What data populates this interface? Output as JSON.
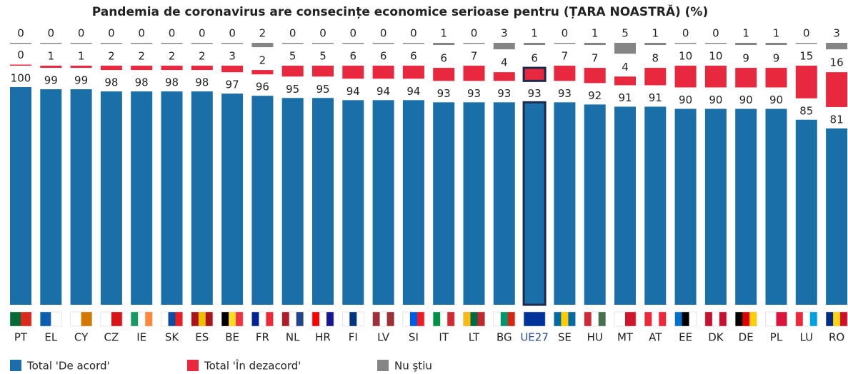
{
  "chart_data": {
    "type": "bar",
    "title": "Pandemia de coronavirus are consecințe economice serioase pentru (ȚARA NOASTRĂ) (%)",
    "categories": [
      "PT",
      "EL",
      "CY",
      "CZ",
      "IE",
      "SK",
      "ES",
      "BE",
      "FR",
      "NL",
      "HR",
      "FI",
      "LV",
      "SI",
      "IT",
      "LT",
      "BG",
      "UE27",
      "SE",
      "HU",
      "MT",
      "AT",
      "EE",
      "DK",
      "DE",
      "PL",
      "LU",
      "RO"
    ],
    "series": [
      {
        "name": "Total 'De acord'",
        "color": "#1a6fa8",
        "values": [
          100,
          99,
          99,
          98,
          98,
          98,
          98,
          97,
          96,
          95,
          95,
          94,
          94,
          94,
          93,
          93,
          93,
          93,
          93,
          92,
          91,
          91,
          90,
          90,
          90,
          90,
          85,
          81
        ]
      },
      {
        "name": "Total 'În dezacord'",
        "color": "#e8283f",
        "values": [
          0,
          1,
          1,
          2,
          2,
          2,
          2,
          3,
          2,
          5,
          5,
          6,
          6,
          6,
          6,
          7,
          4,
          6,
          7,
          7,
          4,
          8,
          10,
          10,
          9,
          9,
          15,
          16
        ]
      },
      {
        "name": "Nu ştiu",
        "color": "#858585",
        "values": [
          0,
          0,
          0,
          0,
          0,
          0,
          0,
          0,
          2,
          0,
          0,
          0,
          0,
          0,
          1,
          0,
          3,
          1,
          0,
          1,
          5,
          1,
          0,
          0,
          1,
          1,
          0,
          3
        ]
      }
    ],
    "highlight": "UE27"
  }
}
